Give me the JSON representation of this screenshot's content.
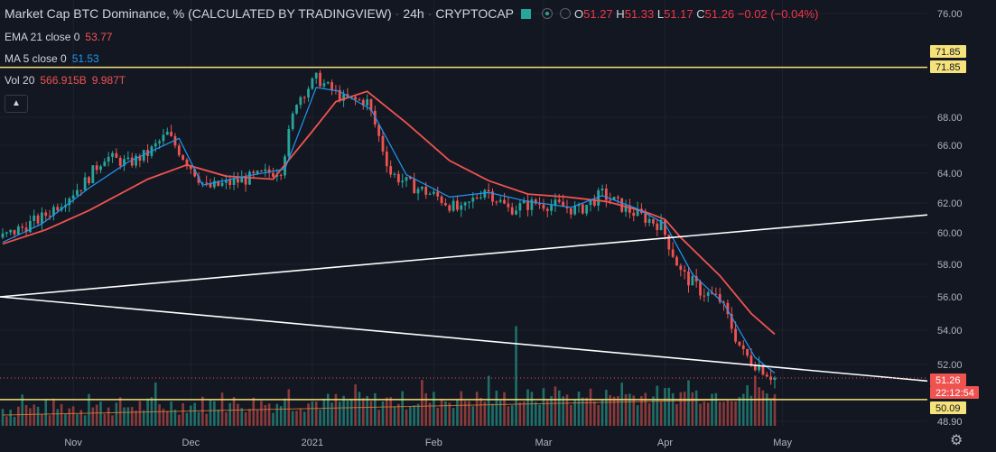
{
  "header": {
    "title": "Market Cap BTC Dominance, % (CALCULATED BY TRADINGVIEW)",
    "interval": "24h",
    "exchange": "CRYPTOCAP",
    "ohlc": {
      "o_label": "O",
      "o": "51.27",
      "h_label": "H",
      "h": "51.33",
      "l_label": "L",
      "l": "51.17",
      "c_label": "C",
      "c": "51.26",
      "change": "−0.02 (−0.04%)"
    }
  },
  "indicators": {
    "ema": {
      "name": "EMA 21 close 0",
      "value": "53.77",
      "color": "#ef5350"
    },
    "ma": {
      "name": "MA 5 close 0",
      "value": "51.53",
      "color": "#2196f3"
    },
    "vol": {
      "name": "Vol 20",
      "value1": "566.915B",
      "value2": "9.987T"
    }
  },
  "icons": {
    "collapse": "chevron-up-icon",
    "settings": "gear-icon",
    "flag": "flag-icon"
  },
  "chart_data": {
    "type": "candlestick",
    "y_ticks": [
      "76.00",
      "68.00",
      "66.00",
      "64.00",
      "62.00",
      "60.00",
      "58.00",
      "56.00",
      "54.00",
      "52.00",
      "48.90"
    ],
    "x_ticks": [
      "Nov",
      "Dec",
      "2021",
      "Feb",
      "Mar",
      "Apr",
      "May"
    ],
    "ylim": [
      48.9,
      76.0
    ],
    "price_tags": [
      {
        "text": "71.85",
        "value": 71.85,
        "kind": "hline"
      },
      {
        "text": "71.85",
        "value": 71.85,
        "kind": "hline"
      },
      {
        "text": "51.26",
        "value": 51.26,
        "kind": "last"
      },
      {
        "text": "22:12:54",
        "value": 50.95,
        "kind": "countdown"
      },
      {
        "text": "50.09",
        "value": 50.09,
        "kind": "hline"
      }
    ],
    "candle_path": [
      [
        "2020-10-14",
        59.7
      ],
      [
        "2020-10-24",
        61.0
      ],
      [
        "2020-11-04",
        63.4
      ],
      [
        "2020-11-09",
        65.2
      ],
      [
        "2020-11-15",
        64.7
      ],
      [
        "2020-11-20",
        65.4
      ],
      [
        "2020-11-25",
        66.8
      ],
      [
        "2020-11-30",
        64.8
      ],
      [
        "2020-12-05",
        63.0
      ],
      [
        "2020-12-12",
        63.4
      ],
      [
        "2020-12-18",
        63.8
      ],
      [
        "2020-12-24",
        64.3
      ],
      [
        "2020-12-28",
        69.3
      ],
      [
        "2021-01-02",
        71.0
      ],
      [
        "2021-01-06",
        70.1
      ],
      [
        "2021-01-09",
        69.4
      ],
      [
        "2021-01-15",
        69.2
      ],
      [
        "2021-01-21",
        64.0
      ],
      [
        "2021-01-26",
        63.2
      ],
      [
        "2021-02-02",
        62.4
      ],
      [
        "2021-02-08",
        61.4
      ],
      [
        "2021-02-14",
        63.0
      ],
      [
        "2021-02-20",
        61.6
      ],
      [
        "2021-02-27",
        62.0
      ],
      [
        "2021-03-05",
        61.8
      ],
      [
        "2021-03-10",
        61.5
      ],
      [
        "2021-03-16",
        62.6
      ],
      [
        "2021-03-22",
        61.6
      ],
      [
        "2021-03-31",
        60.5
      ],
      [
        "2021-04-05",
        57.5
      ],
      [
        "2021-04-10",
        56.4
      ],
      [
        "2021-04-15",
        55.8
      ],
      [
        "2021-04-21",
        52.6
      ],
      [
        "2021-04-26",
        51.8
      ],
      [
        "2021-04-29",
        51.26
      ]
    ],
    "ema21_path": [
      [
        "2020-10-14",
        59.3
      ],
      [
        "2020-10-25",
        60.2
      ],
      [
        "2020-11-05",
        61.5
      ],
      [
        "2020-11-20",
        63.6
      ],
      [
        "2020-11-30",
        64.6
      ],
      [
        "2020-12-10",
        63.8
      ],
      [
        "2020-12-22",
        63.6
      ],
      [
        "2021-01-01",
        67.0
      ],
      [
        "2021-01-07",
        69.2
      ],
      [
        "2021-01-15",
        70.0
      ],
      [
        "2021-01-25",
        67.6
      ],
      [
        "2021-02-05",
        64.9
      ],
      [
        "2021-02-15",
        63.5
      ],
      [
        "2021-02-25",
        62.6
      ],
      [
        "2021-03-07",
        62.4
      ],
      [
        "2021-03-17",
        62.1
      ],
      [
        "2021-03-27",
        61.4
      ],
      [
        "2021-04-01",
        60.9
      ],
      [
        "2021-04-05",
        59.7
      ],
      [
        "2021-04-15",
        57.3
      ],
      [
        "2021-04-23",
        55.0
      ],
      [
        "2021-04-29",
        53.77
      ]
    ],
    "ma5_path": [
      [
        "2020-10-14",
        59.4
      ],
      [
        "2020-10-24",
        60.6
      ],
      [
        "2020-11-05",
        63.0
      ],
      [
        "2020-11-15",
        64.8
      ],
      [
        "2020-11-28",
        66.5
      ],
      [
        "2020-12-04",
        63.2
      ],
      [
        "2020-12-15",
        63.8
      ],
      [
        "2020-12-25",
        64.3
      ],
      [
        "2021-01-02",
        70.3
      ],
      [
        "2021-01-08",
        70.0
      ],
      [
        "2021-01-16",
        68.6
      ],
      [
        "2021-01-25",
        63.9
      ],
      [
        "2021-02-05",
        62.4
      ],
      [
        "2021-02-15",
        62.7
      ],
      [
        "2021-02-25",
        62.1
      ],
      [
        "2021-03-08",
        61.7
      ],
      [
        "2021-03-16",
        62.5
      ],
      [
        "2021-03-25",
        61.6
      ],
      [
        "2021-04-01",
        60.6
      ],
      [
        "2021-04-08",
        57.4
      ],
      [
        "2021-04-16",
        55.6
      ],
      [
        "2021-04-24",
        52.4
      ],
      [
        "2021-04-29",
        51.53
      ]
    ],
    "volume_peak": [
      "2021-02-22",
      8.5
    ],
    "trendlines": [
      {
        "name": "upper-trendline",
        "from": [
          "2020-10-14",
          56.0
        ],
        "to": [
          "2021-05-08",
          61.2
        ]
      },
      {
        "name": "lower-trendline",
        "from": [
          "2020-10-14",
          56.0
        ],
        "to": [
          "2021-05-08",
          51.1
        ]
      }
    ]
  },
  "colors": {
    "up": "#26a69a",
    "down": "#ef5350",
    "bg": "#131722",
    "grid": "#1e222d",
    "hline": "#f6e27a",
    "trend": "#ffffff",
    "vol_ma": "#e0833a"
  }
}
